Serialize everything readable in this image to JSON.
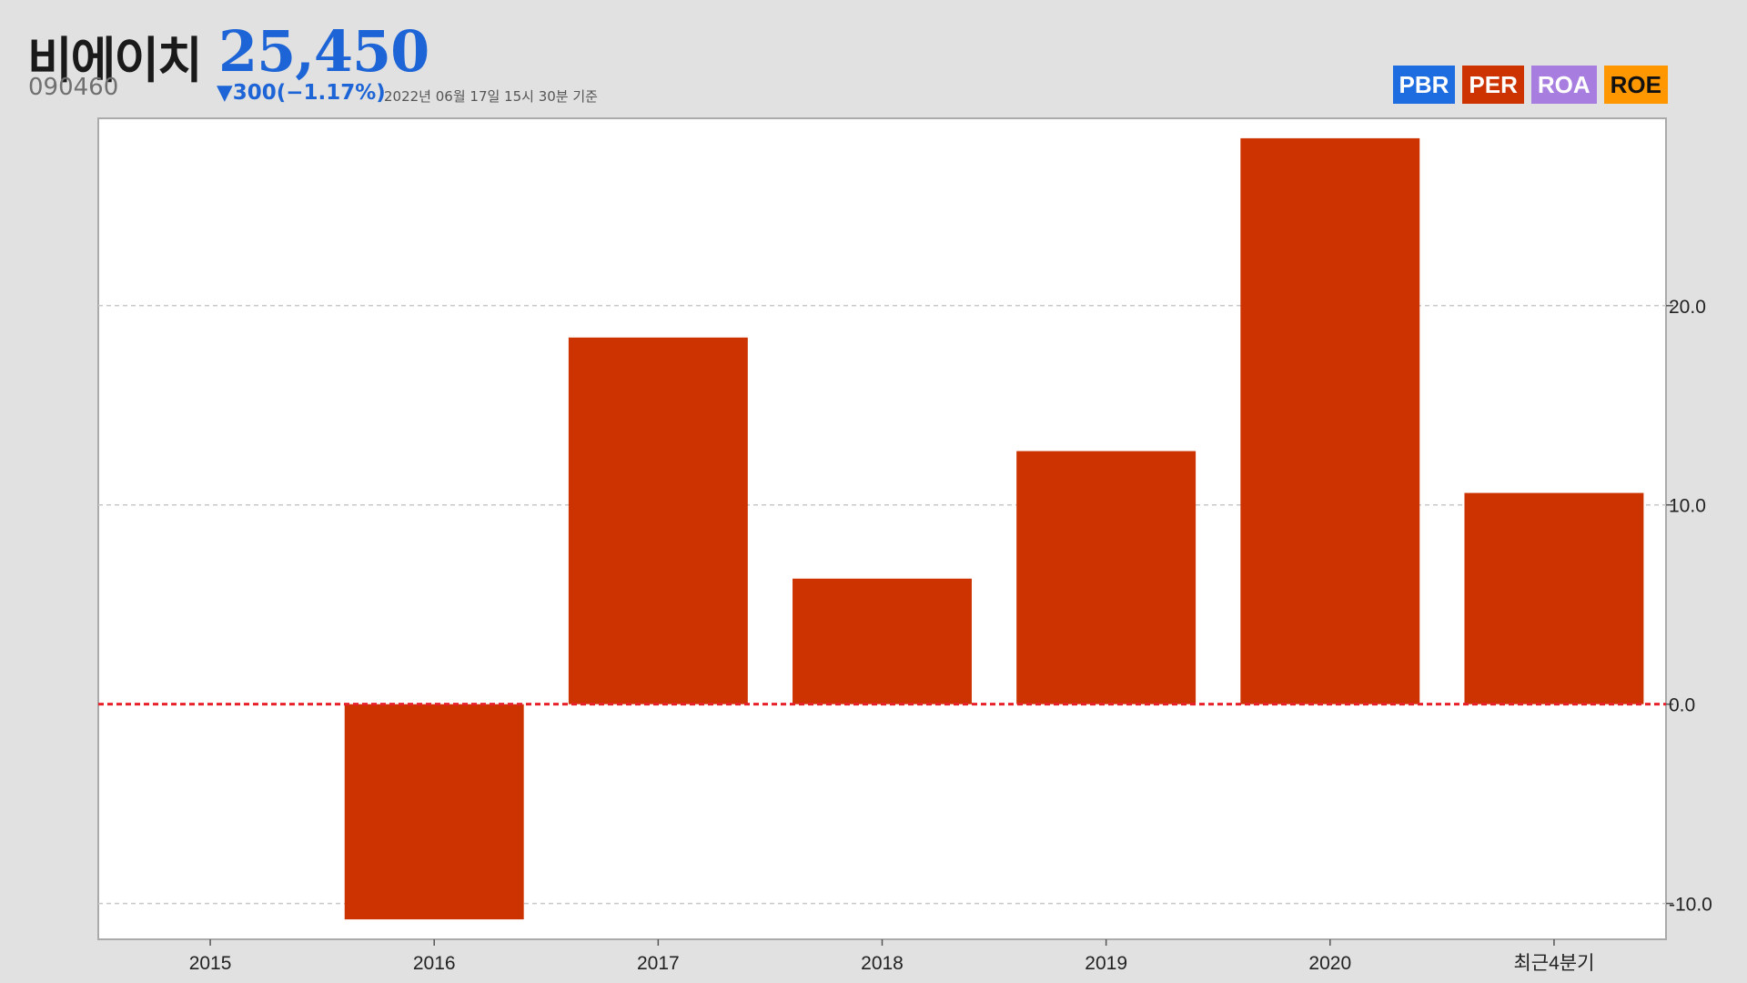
{
  "header": {
    "name": "비에이치",
    "code": "090460",
    "price": "25,450",
    "change": "▼300(−1.17%)",
    "timestamp": "2022년 06월 17일 15시 30분 기준",
    "price_color": "#1d64d6"
  },
  "tabs": [
    {
      "label": "PBR",
      "color": "#1d6ce0"
    },
    {
      "label": "PER",
      "color": "#cc3300"
    },
    {
      "label": "ROA",
      "color": "#a77ee0"
    },
    {
      "label": "ROE",
      "color": "#ff9800"
    }
  ],
  "chart_data": {
    "type": "bar",
    "categories": [
      "2015",
      "2016",
      "2017",
      "2018",
      "2019",
      "2020",
      "최근4분기"
    ],
    "values": [
      null,
      -10.8,
      18.4,
      6.3,
      12.7,
      28.4,
      10.6
    ],
    "ylim": [
      -11.8,
      29.4
    ],
    "yticks": [
      -10.0,
      0.0,
      10.0,
      20.0
    ],
    "ytick_labels": [
      "-10.0",
      "0.0",
      "10.0",
      "20.0"
    ],
    "bar_color": "#cc3300",
    "zero_line_color": "#e8202a",
    "grid": true,
    "yaxis_position": "right"
  }
}
